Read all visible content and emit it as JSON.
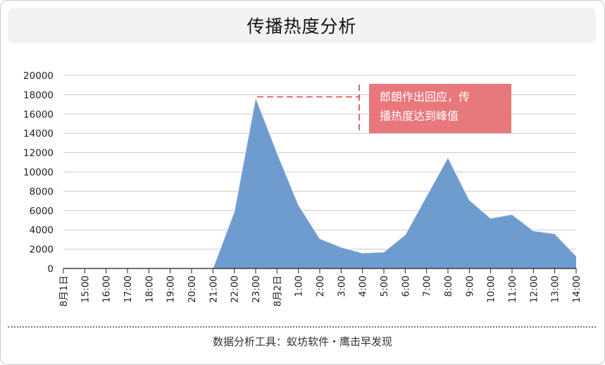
{
  "title": "传播热度分析",
  "footer": "数据分析工具：蚁坊软件・鹰击早发现",
  "colors": {
    "area": "#6f9ccf",
    "area_stroke": "#e9f0f8",
    "annotation_bg": "#e8787c",
    "annotation_line": "#d9434a",
    "grid": "#c8c8c8"
  },
  "chart_data": {
    "type": "area",
    "title": "传播热度分析",
    "xlabel": "",
    "ylabel": "",
    "ylim": [
      0,
      20000
    ],
    "yticks": [
      0,
      2000,
      4000,
      6000,
      8000,
      10000,
      12000,
      14000,
      16000,
      18000,
      20000
    ],
    "categories": [
      "8月1日",
      "15:00",
      "16:00",
      "17:00",
      "18:00",
      "19:00",
      "20:00",
      "21:00",
      "22:00",
      "23:00",
      "8月2日",
      "1:00",
      "2:00",
      "3:00",
      "4:00",
      "5:00",
      "6:00",
      "7:00",
      "8:00",
      "9:00",
      "10:00",
      "11:00",
      "12:00",
      "13:00",
      "14:00"
    ],
    "series": [
      {
        "values": [
          0,
          0,
          0,
          0,
          0,
          0,
          0,
          0,
          5900,
          17700,
          12000,
          6600,
          3100,
          2200,
          1600,
          1700,
          3500,
          7500,
          11500,
          7100,
          5200,
          5600,
          3900,
          3600,
          1300
        ]
      }
    ],
    "grid": true,
    "annotation": {
      "text_lines": [
        "郎朗作出回应，传",
        "播热度达到峰值"
      ],
      "category": "23:00"
    }
  }
}
